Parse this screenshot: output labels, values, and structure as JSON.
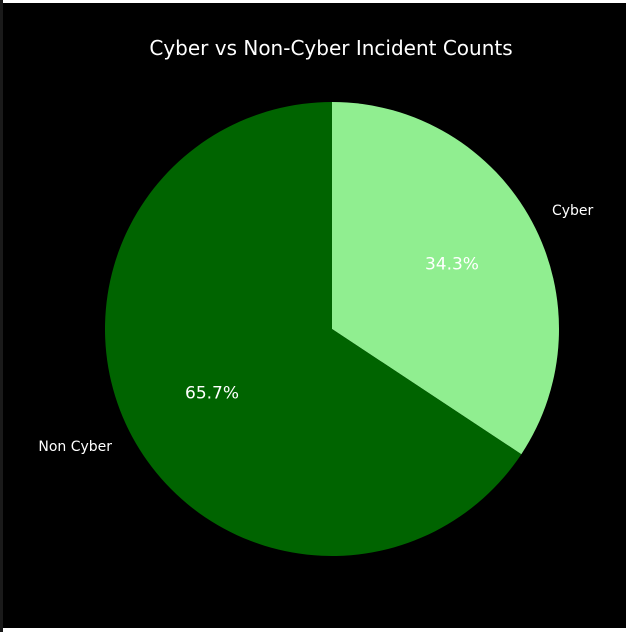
{
  "chart_data": {
    "type": "pie",
    "title": "Cyber vs Non-Cyber Incident Counts",
    "slices": [
      {
        "label": "Cyber",
        "value": 34.3,
        "pct_label": "34.3%",
        "color": "#90ee90"
      },
      {
        "label": "Non Cyber",
        "value": 65.7,
        "pct_label": "65.7%",
        "color": "#006400"
      }
    ],
    "start_angle_deg": 90,
    "direction": "clockwise",
    "background": "#000000",
    "text_color": "#ffffff"
  }
}
